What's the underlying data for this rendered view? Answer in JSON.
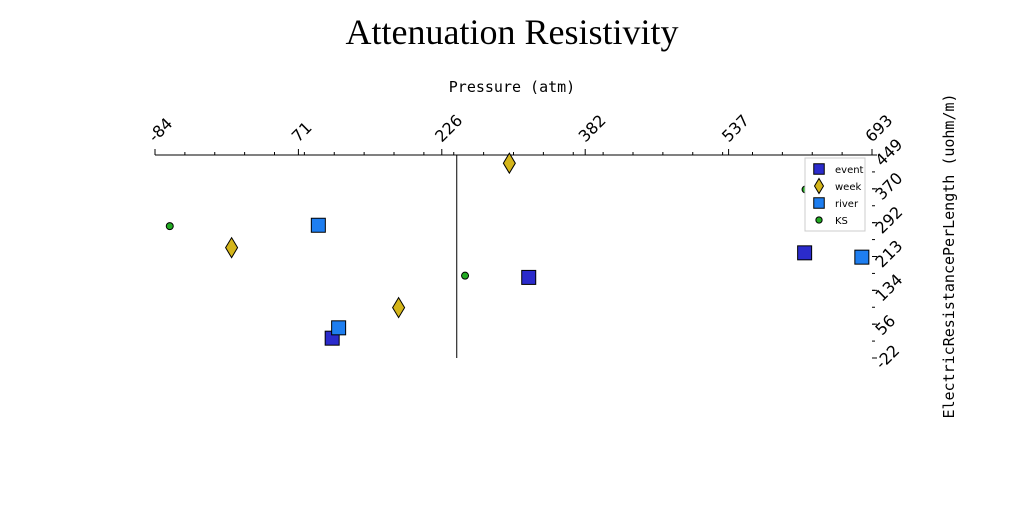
{
  "chart_data": {
    "type": "scatter",
    "title": "Attenuation Resistivity",
    "xlabel": "Pressure (atm)",
    "ylabel": "ElectricResistancePerLength (uohm/m)",
    "xlim": [
      -84,
      693
    ],
    "ylim": [
      -22,
      449
    ],
    "x_ticks": [
      "-84",
      "71",
      "226",
      "382",
      "537",
      "693"
    ],
    "y_ticks": [
      "449",
      "370",
      "292",
      "213",
      "134",
      "56",
      "-22"
    ],
    "x_axis_position": "top",
    "y_axis_position": "right",
    "grid": false,
    "legend_position": "top-right",
    "series": [
      {
        "name": "event",
        "marker": "square",
        "color": "#2b2bcc",
        "points": [
          [
            620,
            222
          ],
          [
            321,
            165
          ],
          [
            108,
            24
          ]
        ]
      },
      {
        "name": "week",
        "marker": "diamond",
        "color": "#d4b51a",
        "points": [
          [
            300,
            430
          ],
          [
            -1,
            234
          ],
          [
            180,
            95
          ]
        ]
      },
      {
        "name": "river",
        "marker": "square",
        "color": "#1e7ef0",
        "points": [
          [
            682,
            212
          ],
          [
            93,
            286
          ],
          [
            115,
            48
          ]
        ]
      },
      {
        "name": "KS",
        "marker": "circle",
        "color": "#22aa22",
        "points": [
          [
            -68,
            284
          ],
          [
            252,
            169
          ],
          [
            621,
            369
          ]
        ]
      }
    ],
    "vline_x": 243
  }
}
